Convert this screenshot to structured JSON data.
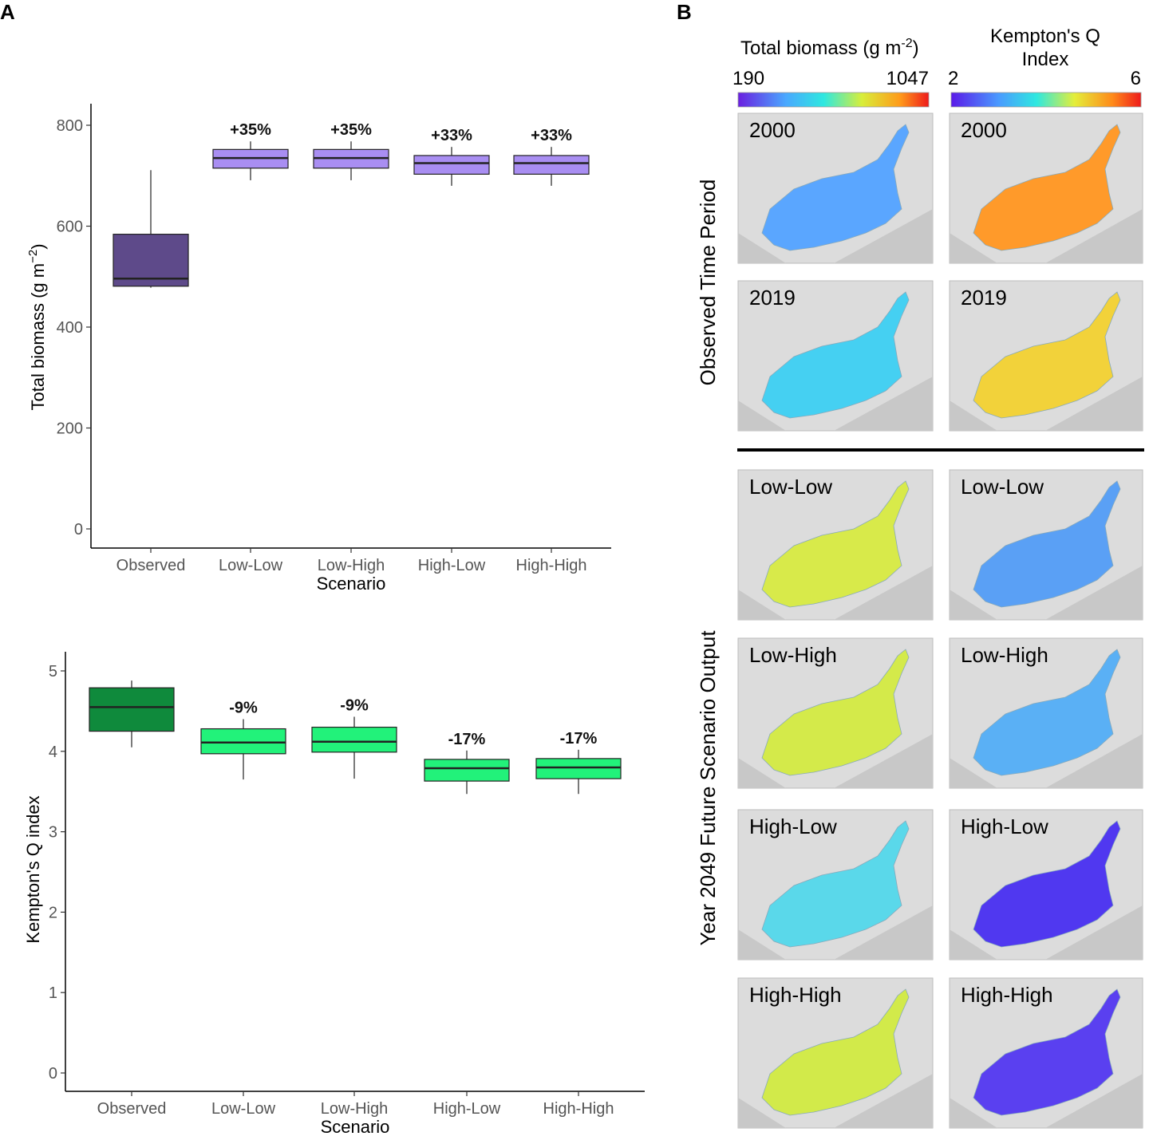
{
  "panel_labels": {
    "a": "A",
    "b": "B"
  },
  "chart_data": [
    {
      "type": "box",
      "id": "biomass",
      "title": "",
      "xlabel": "Scenario",
      "ylabel": "Total biomass (g m",
      "ylabel_sup": "−2",
      "ylabel_end": ")",
      "ylim": [
        0,
        800
      ],
      "yticks": [
        0,
        200,
        400,
        600,
        800
      ],
      "categories": [
        "Observed",
        "Low-Low",
        "Low-High",
        "High-Low",
        "High-High"
      ],
      "boxes": [
        {
          "min": 478,
          "q1": 481,
          "median": 496,
          "q3": 584,
          "max": 711
        },
        {
          "min": 691,
          "q1": 715,
          "median": 735,
          "q3": 752,
          "max": 768
        },
        {
          "min": 691,
          "q1": 715,
          "median": 735,
          "q3": 752,
          "max": 768
        },
        {
          "min": 680,
          "q1": 703,
          "median": 725,
          "q3": 740,
          "max": 757
        },
        {
          "min": 680,
          "q1": 703,
          "median": 725,
          "q3": 740,
          "max": 757
        }
      ],
      "annotations": [
        "",
        "+35%",
        "+35%",
        "+33%",
        "+33%"
      ],
      "fills": [
        "#5e4a8a",
        "#a98ef2",
        "#a98ef2",
        "#a98ef2",
        "#a98ef2"
      ]
    },
    {
      "type": "box",
      "id": "kempton",
      "title": "",
      "xlabel": "Scenario",
      "ylabel": "Kempton's Q index",
      "ylim": [
        0,
        5
      ],
      "yticks": [
        0,
        1,
        2,
        3,
        4,
        5
      ],
      "categories": [
        "Observed",
        "Low-Low",
        "Low-High",
        "High-Low",
        "High-High"
      ],
      "boxes": [
        {
          "min": 4.05,
          "q1": 4.25,
          "median": 4.55,
          "q3": 4.79,
          "max": 4.88
        },
        {
          "min": 3.65,
          "q1": 3.97,
          "median": 4.11,
          "q3": 4.28,
          "max": 4.4
        },
        {
          "min": 3.66,
          "q1": 3.99,
          "median": 4.12,
          "q3": 4.3,
          "max": 4.43
        },
        {
          "min": 3.47,
          "q1": 3.63,
          "median": 3.79,
          "q3": 3.9,
          "max": 4.01
        },
        {
          "min": 3.47,
          "q1": 3.66,
          "median": 3.8,
          "q3": 3.91,
          "max": 4.02
        }
      ],
      "annotations": [
        "",
        "-9%",
        "-9%",
        "-17%",
        "-17%"
      ],
      "fills": [
        "#0f8a3c",
        "#22f27a",
        "#22f27a",
        "#22f27a",
        "#22f27a"
      ]
    }
  ],
  "maps": {
    "colorbars": [
      {
        "title": "Total biomass (g m",
        "title_sup": "-2",
        "title_end": ")",
        "min": "190",
        "max": "1047"
      },
      {
        "title_line1": "Kempton's Q",
        "title_line2": "Index",
        "min": "2",
        "max": "6"
      }
    ],
    "side_titles": {
      "observed": "Observed Time Period",
      "future": "Year 2049 Future Scenario Output"
    },
    "rows": [
      {
        "label": "2000",
        "biomass_color": "#5aa6ff",
        "q_color": "#ff9a2a"
      },
      {
        "label": "2019",
        "biomass_color": "#45d0f2",
        "q_color": "#f2d23a"
      },
      {
        "label": "Low-Low",
        "biomass_color": "#d8ea4a",
        "q_color": "#5aa0f5"
      },
      {
        "label": "Low-High",
        "biomass_color": "#d4ea4a",
        "q_color": "#5ab0f5"
      },
      {
        "label": "High-Low",
        "biomass_color": "#5ad8ea",
        "q_color": "#5038f0"
      },
      {
        "label": "High-High",
        "biomass_color": "#d2ea4a",
        "q_color": "#5a40f0"
      }
    ]
  }
}
